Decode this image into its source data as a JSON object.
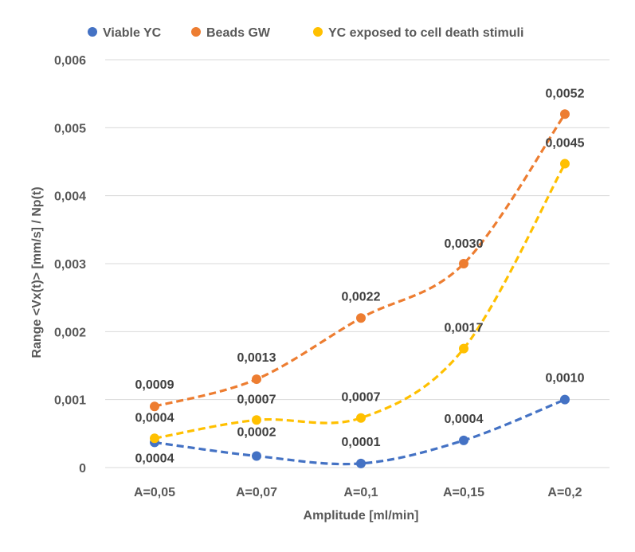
{
  "chart_data": {
    "type": "scatter",
    "style": "smoothed dashed lines with markers",
    "categories": [
      "A=0,05",
      "A=0,07",
      "A=0,1",
      "A=0,15",
      "A=0,2"
    ],
    "xlabel": "Amplitude [ml/min]",
    "ylabel": "Range <Vx(t)> [mm/s] / Np(t)",
    "ylim": [
      0,
      0.006
    ],
    "yticks": [
      0,
      0.001,
      0.002,
      0.003,
      0.004,
      0.005,
      0.006
    ],
    "ytick_labels": [
      "0",
      "0,001",
      "0,002",
      "0,003",
      "0,004",
      "0,005",
      "0,006"
    ],
    "grid": "horizontal",
    "legend_position": "top",
    "series": [
      {
        "name": "Viable YC",
        "color": "#4472C4",
        "values": [
          0.00037,
          0.00017,
          6e-05,
          0.0004,
          0.001
        ],
        "labels": [
          "0,0004",
          "0,0002",
          "0,0001",
          "0,0004",
          "0,0010"
        ]
      },
      {
        "name": "Beads GW",
        "color": "#ED7D31",
        "values": [
          0.0009,
          0.0013,
          0.0022,
          0.003,
          0.0052
        ],
        "labels": [
          "0,0009",
          "0,0013",
          "0,0022",
          "0,0030",
          "0,0052"
        ]
      },
      {
        "name": "YC exposed to cell death stimuli",
        "color": "#FFC000",
        "values": [
          0.00043,
          0.0007,
          0.00073,
          0.00175,
          0.00447
        ],
        "labels": [
          "0,0004",
          "0,0007",
          "0,0007",
          "0,0017",
          "0,0045"
        ]
      }
    ]
  }
}
